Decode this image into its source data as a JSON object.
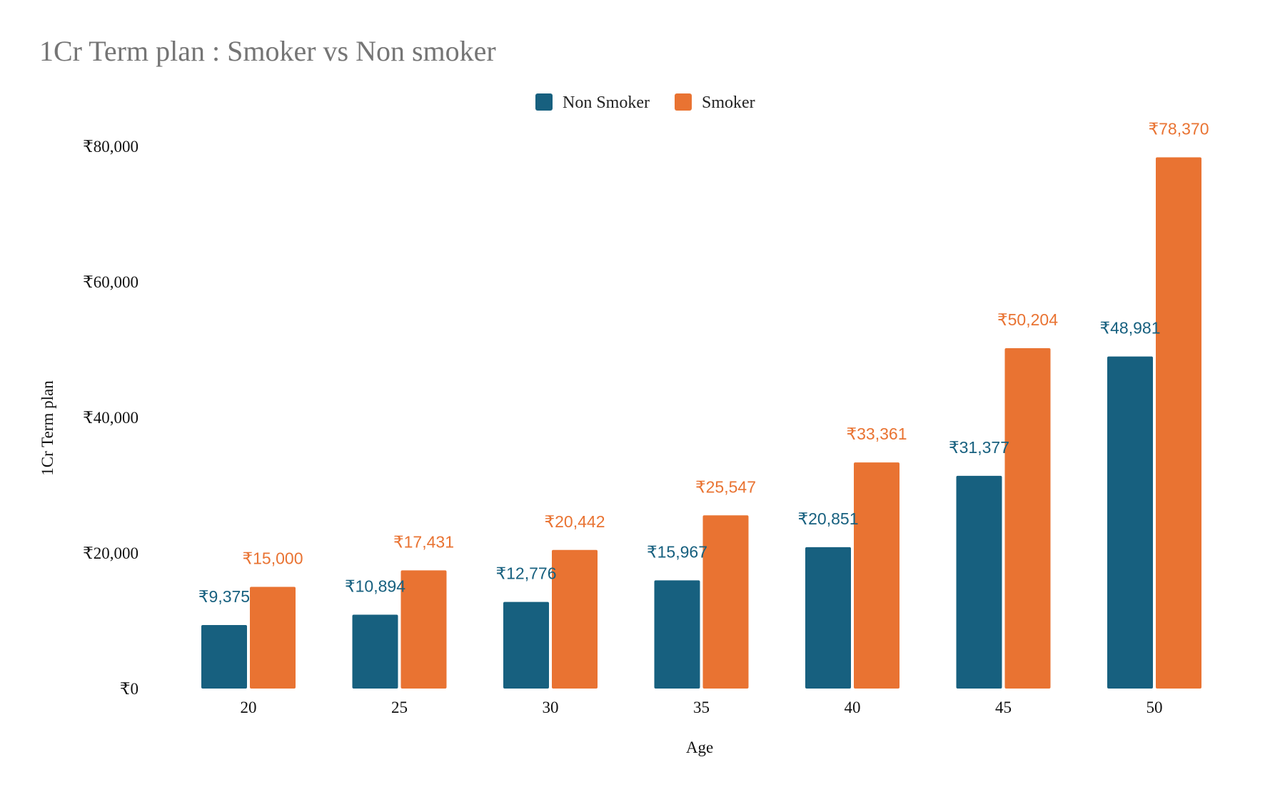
{
  "chart_data": {
    "type": "bar",
    "title": "1Cr Term plan : Smoker vs Non smoker",
    "xlabel": "Age",
    "ylabel": "1Cr Term plan",
    "categories": [
      "20",
      "25",
      "30",
      "35",
      "40",
      "45",
      "50"
    ],
    "series": [
      {
        "name": "Non Smoker",
        "color": "#17607f",
        "values": [
          9375,
          10894,
          12776,
          15967,
          20851,
          31377,
          48981
        ],
        "labels": [
          "₹9,375",
          "₹10,894",
          "₹12,776",
          "₹15,967",
          "₹20,851",
          "₹31,377",
          "₹48,981"
        ]
      },
      {
        "name": "Smoker",
        "color": "#e97332",
        "values": [
          15000,
          17431,
          20442,
          25547,
          33361,
          50204,
          78370
        ],
        "labels": [
          "₹15,000",
          "₹17,431",
          "₹20,442",
          "₹25,547",
          "₹33,361",
          "₹50,204",
          "₹78,370"
        ]
      }
    ],
    "ylim": [
      0,
      80000
    ],
    "yticks": [
      0,
      20000,
      40000,
      60000,
      80000
    ],
    "ytick_labels": [
      "₹0",
      "₹20,000",
      "₹40,000",
      "₹60,000",
      "₹80,000"
    ],
    "grid": false,
    "legend_position": "top-center"
  }
}
